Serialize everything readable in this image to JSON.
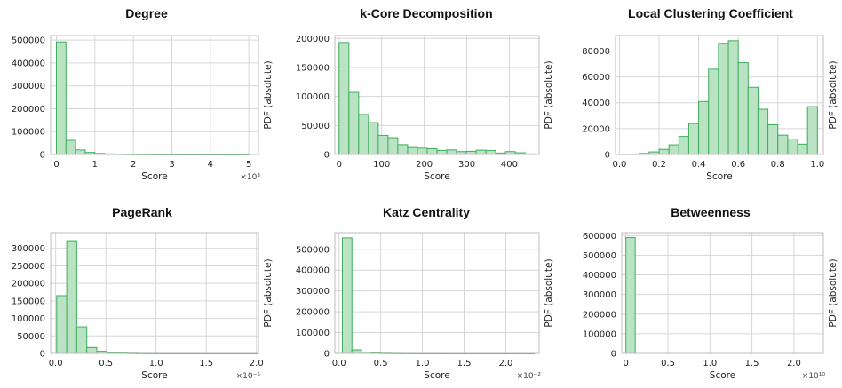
{
  "chart_data": [
    {
      "type": "bar",
      "title": "Degree",
      "xlabel": "Score",
      "ylabel": "PDF (absolute)",
      "x_multiplier": "×10³",
      "xlim": [
        -0.15,
        5.25
      ],
      "ylim": [
        0,
        520000
      ],
      "x_ticks": [
        0,
        1,
        2,
        3,
        4,
        5
      ],
      "x_tick_labels": [
        "0",
        "1",
        "2",
        "3",
        "4",
        "5"
      ],
      "y_ticks": [
        0,
        100000,
        200000,
        300000,
        400000,
        500000
      ],
      "y_tick_labels": [
        "0",
        "100000",
        "200000",
        "300000",
        "400000",
        "500000"
      ],
      "bin_edges": [
        0,
        0.25,
        0.5,
        0.75,
        1.0,
        1.25,
        1.5,
        1.75,
        2.0,
        2.25,
        2.5,
        2.75,
        3.0,
        3.25,
        3.5,
        3.75,
        4.0,
        4.25,
        4.5,
        4.75,
        5.0
      ],
      "values": [
        492000,
        62000,
        20000,
        9000,
        4500,
        2500,
        1500,
        1000,
        600,
        400,
        300,
        200,
        150,
        100,
        80,
        60,
        40,
        30,
        20,
        10
      ]
    },
    {
      "type": "bar",
      "title": "k-Core Decomposition",
      "xlabel": "Score",
      "ylabel": "PDF (absolute)",
      "x_multiplier": "",
      "xlim": [
        -10,
        470
      ],
      "ylim": [
        0,
        205000
      ],
      "x_ticks": [
        0,
        100,
        200,
        300,
        400
      ],
      "x_tick_labels": [
        "0",
        "100",
        "200",
        "300",
        "400"
      ],
      "y_ticks": [
        0,
        50000,
        100000,
        150000,
        200000
      ],
      "y_tick_labels": [
        "0",
        "50000",
        "100000",
        "150000",
        "200000"
      ],
      "bin_edges": [
        0,
        23,
        46,
        69,
        92,
        115,
        138,
        161,
        184,
        207,
        230,
        253,
        276,
        299,
        322,
        345,
        368,
        391,
        414,
        437,
        460
      ],
      "values": [
        193000,
        107000,
        69000,
        55000,
        33000,
        29000,
        17000,
        12000,
        11000,
        10000,
        7000,
        8000,
        5000,
        5500,
        7500,
        7000,
        2500,
        5000,
        3000,
        1000
      ]
    },
    {
      "type": "bar",
      "title": "Local Clustering Coefficient",
      "xlabel": "Score",
      "ylabel": "PDF (absolute)",
      "x_multiplier": "",
      "xlim": [
        -0.02,
        1.03
      ],
      "ylim": [
        0,
        92000
      ],
      "x_ticks": [
        0.0,
        0.2,
        0.4,
        0.6,
        0.8,
        1.0
      ],
      "x_tick_labels": [
        "0.0",
        "0.2",
        "0.4",
        "0.6",
        "0.8",
        "1.0"
      ],
      "y_ticks": [
        0,
        20000,
        40000,
        60000,
        80000
      ],
      "y_tick_labels": [
        "0",
        "20000",
        "40000",
        "60000",
        "80000"
      ],
      "bin_edges": [
        0,
        0.05,
        0.1,
        0.15,
        0.2,
        0.25,
        0.3,
        0.35,
        0.4,
        0.45,
        0.5,
        0.55,
        0.6,
        0.65,
        0.7,
        0.75,
        0.8,
        0.85,
        0.9,
        0.95,
        1.0
      ],
      "values": [
        300,
        300,
        800,
        2000,
        4000,
        7500,
        14000,
        24000,
        41000,
        66000,
        86000,
        88000,
        71000,
        52000,
        35000,
        23000,
        15000,
        12000,
        8000,
        37000
      ]
    },
    {
      "type": "bar",
      "title": "PageRank",
      "xlabel": "Score",
      "ylabel": "PDF (absolute)",
      "x_multiplier": "×10⁻⁵",
      "xlim": [
        -0.05,
        2.02
      ],
      "ylim": [
        0,
        345000
      ],
      "x_ticks": [
        0.0,
        0.5,
        1.0,
        1.5,
        2.0
      ],
      "x_tick_labels": [
        "0.0",
        "0.5",
        "1.0",
        "1.5",
        "2.0"
      ],
      "y_ticks": [
        0,
        50000,
        100000,
        150000,
        200000,
        250000,
        300000
      ],
      "y_tick_labels": [
        "0",
        "50000",
        "100000",
        "150000",
        "200000",
        "250000",
        "300000"
      ],
      "bin_edges": [
        0.01,
        0.11,
        0.21,
        0.31,
        0.41,
        0.51,
        0.61,
        0.71,
        0.81,
        0.91,
        1.01,
        1.11,
        1.21,
        1.31,
        1.41,
        1.51,
        1.61,
        1.71,
        1.81,
        1.91,
        2.01
      ],
      "values": [
        165000,
        322000,
        76000,
        17000,
        6000,
        2500,
        1200,
        600,
        300,
        200,
        100,
        80,
        60,
        40,
        30,
        20,
        10,
        10,
        10,
        10
      ]
    },
    {
      "type": "bar",
      "title": "Katz Centrality",
      "xlabel": "Score",
      "ylabel": "PDF (absolute)",
      "x_multiplier": "×10⁻²",
      "xlim": [
        -0.05,
        2.4
      ],
      "ylim": [
        0,
        580000
      ],
      "x_ticks": [
        0.0,
        0.5,
        1.0,
        1.5,
        2.0
      ],
      "x_tick_labels": [
        "0.0",
        "0.5",
        "1.0",
        "1.5",
        "2.0"
      ],
      "y_ticks": [
        0,
        100000,
        200000,
        300000,
        400000,
        500000
      ],
      "y_tick_labels": [
        "0",
        "100000",
        "200000",
        "300000",
        "400000",
        "500000"
      ],
      "bin_edges": [
        0.04,
        0.155,
        0.27,
        0.385,
        0.5,
        0.615,
        0.73,
        0.845,
        0.96,
        1.075,
        1.19,
        1.305,
        1.42,
        1.535,
        1.65,
        1.765,
        1.88,
        1.995,
        2.11,
        2.225,
        2.34
      ],
      "values": [
        555000,
        17000,
        6000,
        2500,
        1200,
        600,
        300,
        200,
        100,
        80,
        60,
        40,
        30,
        20,
        10,
        10,
        10,
        10,
        10,
        10
      ]
    },
    {
      "type": "bar",
      "title": "Betweenness",
      "xlabel": "Score",
      "ylabel": "PDF (absolute)",
      "x_multiplier": "×10¹⁰",
      "xlim": [
        -0.05,
        2.35
      ],
      "ylim": [
        0,
        615000
      ],
      "x_ticks": [
        0.0,
        0.5,
        1.0,
        1.5,
        2.0
      ],
      "x_tick_labels": [
        "0",
        "0.5",
        "1.0",
        "1.5",
        "2.0"
      ],
      "y_ticks": [
        0,
        100000,
        200000,
        300000,
        400000,
        500000,
        600000
      ],
      "y_tick_labels": [
        "0",
        "100000",
        "200000",
        "300000",
        "400000",
        "500000",
        "600000"
      ],
      "bin_edges": [
        0.0,
        0.11,
        0.22,
        0.33,
        0.44,
        0.55,
        0.66,
        0.77,
        0.88,
        0.99,
        1.1,
        1.21,
        1.32,
        1.43,
        1.54,
        1.65,
        1.76,
        1.87,
        1.98,
        2.09,
        2.2
      ],
      "values": [
        590000,
        0,
        0,
        0,
        0,
        0,
        0,
        0,
        0,
        0,
        0,
        0,
        0,
        0,
        0,
        0,
        0,
        0,
        0,
        0
      ]
    }
  ]
}
